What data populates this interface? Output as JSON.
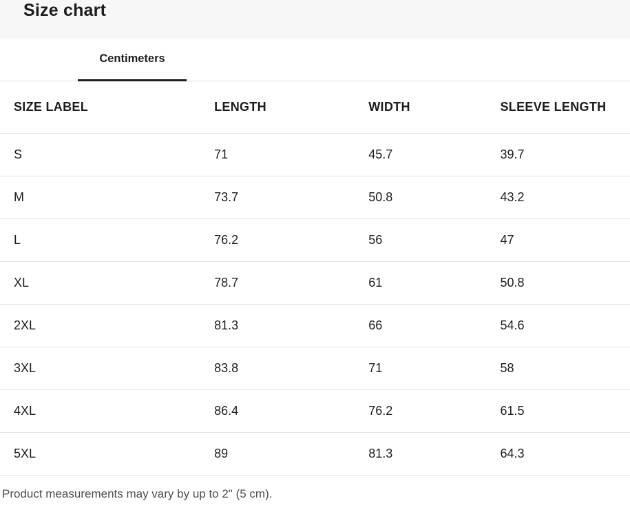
{
  "page": {
    "title": "Size chart"
  },
  "tabs": {
    "active_tab": {
      "label": "Centimeters"
    }
  },
  "table": {
    "columns": [
      "SIZE LABEL",
      "LENGTH",
      "WIDTH",
      "SLEEVE LENGTH"
    ],
    "rows": [
      {
        "size": "S",
        "length": "71",
        "width": "45.7",
        "sleeve_length": "39.7"
      },
      {
        "size": "M",
        "length": "73.7",
        "width": "50.8",
        "sleeve_length": "43.2"
      },
      {
        "size": "L",
        "length": "76.2",
        "width": "56",
        "sleeve_length": "47"
      },
      {
        "size": "XL",
        "length": "78.7",
        "width": "61",
        "sleeve_length": "50.8"
      },
      {
        "size": "2XL",
        "length": "81.3",
        "width": "66",
        "sleeve_length": "54.6"
      },
      {
        "size": "3XL",
        "length": "83.8",
        "width": "71",
        "sleeve_length": "58"
      },
      {
        "size": "4XL",
        "length": "86.4",
        "width": "76.2",
        "sleeve_length": "61.5"
      },
      {
        "size": "5XL",
        "length": "89",
        "width": "81.3",
        "sleeve_length": "64.3"
      }
    ]
  },
  "footer": {
    "note": "Product measurements may vary by up to 2\" (5 cm)."
  },
  "colors": {
    "title_band_bg": "#f7f7f7",
    "text_dark": "#1d1d1d",
    "divider": "#e3e3e3",
    "tab_underline": "#1d1d1d",
    "footer_text": "#4d4d4d"
  }
}
